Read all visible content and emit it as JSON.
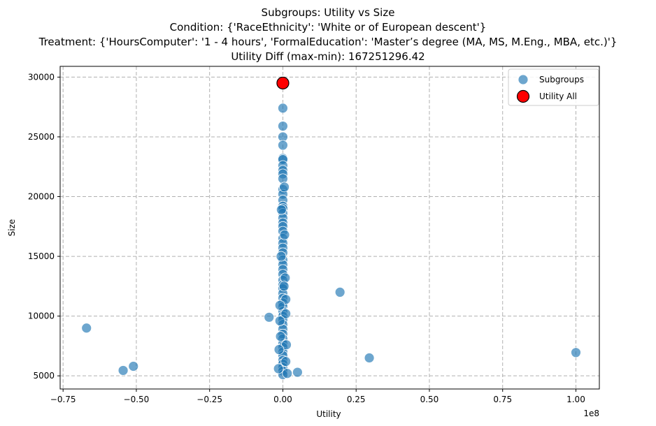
{
  "chart_data": {
    "type": "scatter",
    "title_lines": [
      "Subgroups: Utility vs Size",
      "Condition: {'RaceEthnicity': 'White or of European descent'}",
      "Treatment: {'HoursComputer': '1 - 4 hours', 'FormalEducation': 'Master’s degree (MA, MS, M.Eng., MBA, etc.)'}",
      "Utility Diff (max-min): 167251296.42"
    ],
    "xlabel": "Utility",
    "ylabel": "Size",
    "x_offset_label": "1e8",
    "xlim": [
      -0.76,
      1.08
    ],
    "ylim": [
      3900,
      30900
    ],
    "x_ticks": [
      -0.75,
      -0.5,
      -0.25,
      0.0,
      0.25,
      0.5,
      0.75,
      1.0
    ],
    "x_tick_labels": [
      "−0.75",
      "−0.50",
      "−0.25",
      "0.00",
      "0.25",
      "0.50",
      "0.75",
      "1.00"
    ],
    "y_ticks": [
      5000,
      10000,
      15000,
      20000,
      25000,
      30000
    ],
    "y_tick_labels": [
      "5000",
      "10000",
      "15000",
      "20000",
      "25000",
      "30000"
    ],
    "grid": true,
    "legend_position": "top-right",
    "series": [
      {
        "name": "Subgroups",
        "color": "#1f77b4",
        "points": [
          [
            -0.67,
            9000
          ],
          [
            -0.545,
            5450
          ],
          [
            -0.51,
            5800
          ],
          [
            -0.047,
            9900
          ],
          [
            0.195,
            12000
          ],
          [
            0.295,
            6500
          ],
          [
            1.0,
            6950
          ],
          [
            0.05,
            5300
          ],
          [
            0.0,
            27400
          ],
          [
            0.0,
            25900
          ],
          [
            0.0,
            25000
          ],
          [
            0.0,
            24300
          ],
          [
            0.0,
            23200
          ],
          [
            0.0,
            23100
          ],
          [
            0.0,
            22600
          ],
          [
            0.0,
            22200
          ],
          [
            0.0,
            21900
          ],
          [
            0.0,
            21500
          ],
          [
            0.0,
            20600
          ],
          [
            0.0,
            20200
          ],
          [
            0.0,
            19700
          ],
          [
            0.0,
            19200
          ],
          [
            0.0,
            19000
          ],
          [
            0.0,
            18600
          ],
          [
            0.0,
            18200
          ],
          [
            0.0,
            17800
          ],
          [
            0.0,
            17500
          ],
          [
            0.0,
            17100
          ],
          [
            0.0,
            16500
          ],
          [
            0.0,
            16100
          ],
          [
            0.0,
            15700
          ],
          [
            0.0,
            15300
          ],
          [
            0.0,
            14700
          ],
          [
            0.0,
            14300
          ],
          [
            0.0,
            13900
          ],
          [
            0.0,
            13500
          ],
          [
            0.0,
            13000
          ],
          [
            0.0,
            12600
          ],
          [
            0.0,
            12300
          ],
          [
            0.0,
            11900
          ],
          [
            0.0,
            11500
          ],
          [
            0.0,
            11100
          ],
          [
            0.0,
            10800
          ],
          [
            0.0,
            10400
          ],
          [
            0.0,
            10000
          ],
          [
            0.0,
            9700
          ],
          [
            0.0,
            9300
          ],
          [
            0.0,
            8900
          ],
          [
            0.0,
            8500
          ],
          [
            0.0,
            8100
          ],
          [
            0.0,
            7700
          ],
          [
            0.0,
            7400
          ],
          [
            0.0,
            7000
          ],
          [
            0.0,
            6700
          ],
          [
            0.0,
            6300
          ],
          [
            0.0,
            6000
          ],
          [
            0.0,
            5700
          ],
          [
            0.0,
            5400
          ],
          [
            0.0,
            5100
          ],
          [
            0.01,
            11400
          ],
          [
            -0.01,
            10900
          ],
          [
            0.01,
            10200
          ],
          [
            -0.01,
            9600
          ],
          [
            0.012,
            7600
          ],
          [
            -0.013,
            7200
          ],
          [
            0.015,
            5200
          ],
          [
            -0.015,
            5600
          ],
          [
            0.01,
            6200
          ],
          [
            -0.008,
            8300
          ],
          [
            0.008,
            13200
          ],
          [
            -0.006,
            15000
          ],
          [
            0.006,
            16800
          ],
          [
            -0.005,
            18900
          ],
          [
            0.005,
            20800
          ],
          [
            0.004,
            12500
          ]
        ]
      },
      {
        "name": "Utility All",
        "color": "#ff0000",
        "points": [
          [
            0.0,
            29500
          ]
        ]
      }
    ]
  }
}
